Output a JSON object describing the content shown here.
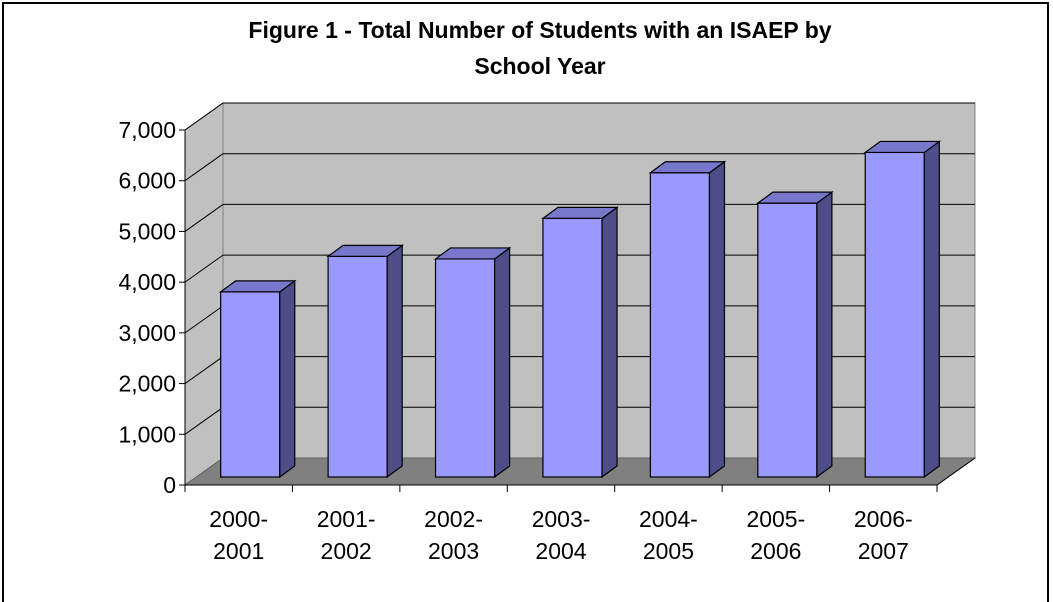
{
  "chart_data": {
    "type": "bar",
    "title": "Figure 1 - Total Number of Students with an ISAEP by School Year",
    "title_lines": [
      "Figure 1 - Total Number of Students with an ISAEP by",
      "School Year"
    ],
    "categories": [
      "2000-2001",
      "2001-2002",
      "2002-2003",
      "2003-2004",
      "2004-2005",
      "2005-2006",
      "2006-2007"
    ],
    "category_lines": [
      [
        "2000-",
        "2001"
      ],
      [
        "2001-",
        "2002"
      ],
      [
        "2002-",
        "2003"
      ],
      [
        "2003-",
        "2004"
      ],
      [
        "2004-",
        "2005"
      ],
      [
        "2005-",
        "2006"
      ],
      [
        "2006-",
        "2007"
      ]
    ],
    "values": [
      3650,
      4350,
      4300,
      5100,
      6000,
      5400,
      6400
    ],
    "ylim": [
      0,
      7000
    ],
    "yticks": [
      0,
      1000,
      2000,
      3000,
      4000,
      5000,
      6000,
      7000
    ],
    "ytick_labels": [
      "0",
      "1,000",
      "2,000",
      "3,000",
      "4,000",
      "5,000",
      "6,000",
      "7,000"
    ],
    "grid": true,
    "style": "3d-column",
    "colors": {
      "bar_front": "#9999ff",
      "bar_side": "#4d4d8a",
      "bar_top": "#7777cc",
      "wall": "#c0c0c0",
      "floor": "#808080",
      "grid": "#000000"
    }
  }
}
